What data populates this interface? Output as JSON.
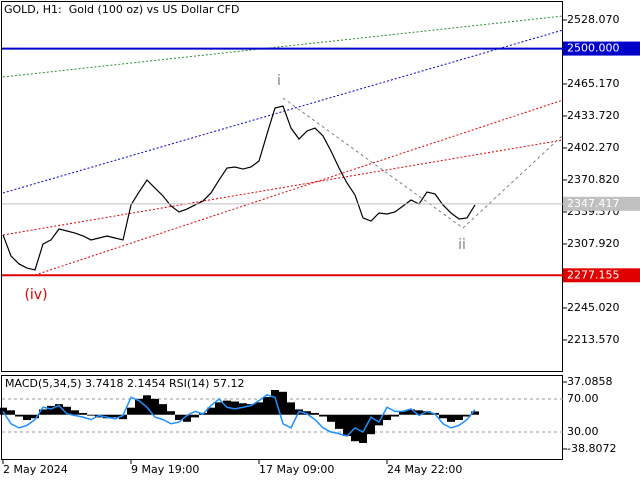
{
  "chart_data": [
    {
      "type": "line",
      "title": "GOLD, H1:  Gold (100 oz) vs US Dollar CFD",
      "categories": [
        "2 May 2024",
        null,
        null,
        null,
        null,
        null,
        null,
        null,
        null,
        null,
        null,
        null,
        null,
        null,
        null,
        null,
        "9 May 19:00",
        null,
        null,
        null,
        null,
        null,
        null,
        null,
        null,
        null,
        null,
        null,
        null,
        null,
        null,
        null,
        "17 May 09:00",
        null,
        null,
        null,
        null,
        null,
        null,
        null,
        null,
        null,
        null,
        null,
        null,
        null,
        null,
        null,
        "24 May 22:00",
        null,
        null,
        null,
        null,
        null,
        null,
        null,
        null,
        null,
        null,
        null
      ],
      "values": [
        2316.8,
        2296.1,
        2288.3,
        2284.3,
        2282.4,
        2307.9,
        2311.9,
        2322.7,
        2320.7,
        2318.7,
        2315.8,
        2311.9,
        2313.8,
        2315.8,
        2313.8,
        2311.9,
        2346.3,
        2359.0,
        2370.8,
        2362.9,
        2355.1,
        2345.3,
        2339.4,
        2342.3,
        2346.3,
        2350.2,
        2358.1,
        2370.8,
        2382.6,
        2383.6,
        2381.6,
        2383.6,
        2389.5,
        2416.0,
        2441.6,
        2443.5,
        2421.9,
        2411.1,
        2419.0,
        2421.9,
        2414.1,
        2399.3,
        2382.6,
        2367.9,
        2356.1,
        2333.5,
        2330.5,
        2338.4,
        2337.4,
        2339.4,
        2345.3,
        2351.2,
        2347.2,
        2359.0,
        2357.1,
        2346.3,
        2338.4,
        2332.5,
        2333.5,
        2346.3
      ],
      "color": "#000000",
      "ylim": [
        2182.12,
        2547.73
      ],
      "yticks": [
        {
          "value": 2528.07,
          "label": "2528.070"
        },
        {
          "value": 2465.17,
          "label": "2465.170"
        },
        {
          "value": 2433.72,
          "label": "2433.720"
        },
        {
          "value": 2402.27,
          "label": "2402.270"
        },
        {
          "value": 2370.82,
          "label": "2370.820"
        },
        {
          "value": 2339.37,
          "label": "2339.370"
        },
        {
          "value": 2307.92,
          "label": "2307.920"
        },
        {
          "value": 2245.02,
          "label": "2245.020"
        },
        {
          "value": 2213.57,
          "label": "2213.570"
        }
      ],
      "levels": [
        {
          "value": 2500,
          "label": "2500.000",
          "color": "#0000cd"
        },
        {
          "value": 2277.155,
          "label": "2277.155",
          "color": "#e00000"
        },
        {
          "value": 2347.417,
          "label": "2347.417",
          "color": "#c0c0c0"
        }
      ],
      "annotations": [
        "i",
        "ii",
        "(iv)"
      ]
    },
    {
      "type": "bar",
      "title": "MACD(5,34,5) 3.7418 2.1454 RSI(14) 57.12",
      "series": [
        {
          "type": "bar",
          "color": "#000000",
          "values": [
            8,
            5,
            -2,
            -6,
            -4,
            6,
            10,
            12,
            9,
            5,
            2,
            -1,
            -3,
            -4,
            -3,
            -5,
            8,
            18,
            22,
            18,
            12,
            4,
            -6,
            -8,
            -3,
            2,
            8,
            14,
            16,
            15,
            13,
            12,
            14,
            20,
            28,
            26,
            14,
            6,
            4,
            2,
            -2,
            -8,
            -16,
            -24,
            -30,
            -32,
            -22,
            -12,
            -6,
            -2,
            4,
            6,
            5,
            4,
            2,
            -4,
            -8,
            -6,
            -2,
            3.7418
          ]
        },
        {
          "type": "line",
          "axis": "y2",
          "color": "#1e90ff",
          "values": [
            55,
            40,
            35,
            38,
            45,
            60,
            58,
            62,
            52,
            50,
            48,
            45,
            50,
            48,
            46,
            50,
            72,
            68,
            60,
            48,
            45,
            40,
            42,
            50,
            55,
            52,
            62,
            70,
            60,
            58,
            60,
            62,
            68,
            75,
            72,
            40,
            35,
            55,
            52,
            45,
            35,
            30,
            28,
            25,
            35,
            30,
            48,
            42,
            60,
            55,
            55,
            58,
            50,
            55,
            52,
            40,
            35,
            38,
            45,
            57.12
          ]
        }
      ],
      "ylim": [
        -51.27,
        43.88
      ],
      "yticks": [
        37.0858,
        -38.8072
      ],
      "y2lim": [
        -3.94,
        97.88
      ],
      "y2ticks": [
        {
          "value": 70,
          "label": "70.00"
        },
        {
          "value": 30,
          "label": "30.00"
        }
      ]
    }
  ]
}
